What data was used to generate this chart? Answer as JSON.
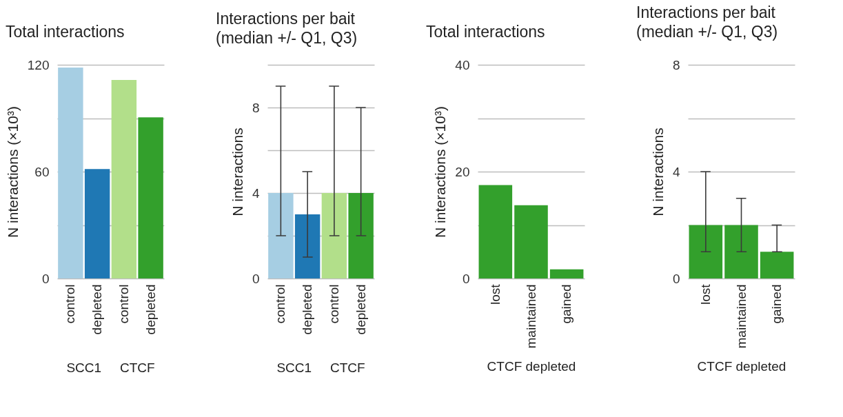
{
  "chart_data": [
    {
      "type": "bar",
      "title": "Total interactions",
      "ylabel": "N interactions (×10³)",
      "categories": [
        "control",
        "depleted",
        "control",
        "depleted"
      ],
      "values": [
        118.5,
        61.5,
        111.5,
        90.5
      ],
      "colors": [
        "#a6cee3",
        "#1f78b4",
        "#b2df8a",
        "#33a02c"
      ],
      "ylim": [
        0,
        120
      ],
      "yticks": [
        0,
        {
          "value": 30,
          "label": null
        },
        60,
        {
          "value": 90,
          "label": null
        },
        120
      ],
      "grid": "y",
      "annotations": [
        "SCC1",
        "CTCF"
      ]
    },
    {
      "type": "bar",
      "title": "Interactions per bait\n(median +/- Q1, Q3)",
      "ylabel": "N interactions",
      "categories": [
        "control",
        "depleted",
        "control",
        "depleted"
      ],
      "values": [
        4,
        3,
        4,
        4
      ],
      "errors": [
        [
          2,
          9
        ],
        [
          1,
          5
        ],
        [
          2,
          9
        ],
        [
          2,
          8
        ]
      ],
      "colors": [
        "#a6cee3",
        "#1f78b4",
        "#b2df8a",
        "#33a02c"
      ],
      "ylim": [
        0,
        10
      ],
      "yticks": [
        0,
        {
          "value": 2,
          "label": null
        },
        4,
        {
          "value": 6,
          "label": null
        },
        8,
        {
          "value": 10,
          "label": null
        }
      ],
      "grid": "y",
      "annotations": [
        "SCC1",
        "CTCF"
      ]
    },
    {
      "type": "bar",
      "title": "Total interactions",
      "ylabel": "N interactions (×10³)",
      "xlabel": "CTCF depleted",
      "categories": [
        "lost",
        "maintained",
        "gained"
      ],
      "values": [
        17.5,
        13.7,
        1.7
      ],
      "colors": [
        "#33a02c",
        "#33a02c",
        "#33a02c"
      ],
      "ylim": [
        0,
        40
      ],
      "yticks": [
        0,
        {
          "value": 10,
          "label": null
        },
        20,
        {
          "value": 30,
          "label": null
        },
        40
      ],
      "grid": "y"
    },
    {
      "type": "bar",
      "title": "Interactions per bait\n(median +/- Q1, Q3)",
      "ylabel": "N interactions",
      "xlabel": "CTCF depleted",
      "categories": [
        "lost",
        "maintained",
        "gained"
      ],
      "values": [
        2,
        2,
        1
      ],
      "errors": [
        [
          1,
          4
        ],
        [
          1,
          3
        ],
        [
          1,
          2
        ]
      ],
      "colors": [
        "#33a02c",
        "#33a02c",
        "#33a02c"
      ],
      "ylim": [
        0,
        8
      ],
      "yticks": [
        0,
        {
          "value": 2,
          "label": null
        },
        4,
        {
          "value": 6,
          "label": null
        },
        8
      ],
      "grid": "y"
    }
  ]
}
